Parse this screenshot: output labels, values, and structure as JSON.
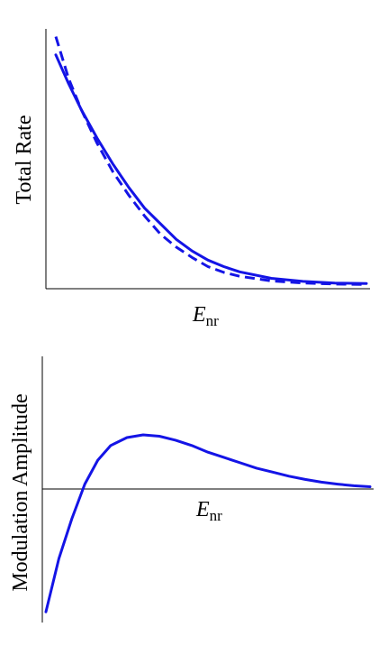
{
  "chart_data": [
    {
      "type": "line",
      "ylabel": "Total Rate",
      "xlabel_main": "E",
      "xlabel_sub": "nr",
      "xlim": [
        0,
        10
      ],
      "ylim": [
        0,
        1
      ],
      "grid": false,
      "ticks": false,
      "series": [
        {
          "style": "solid",
          "color": "#1414e6",
          "x": [
            0.2,
            0.6,
            1.0,
            1.5,
            2.0,
            2.5,
            3.0,
            3.5,
            4.0,
            4.5,
            5.0,
            5.5,
            6.0,
            7.0,
            8.0,
            9.0,
            10.0
          ],
          "y": [
            0.9,
            0.79,
            0.69,
            0.58,
            0.48,
            0.39,
            0.31,
            0.25,
            0.19,
            0.145,
            0.11,
            0.085,
            0.065,
            0.04,
            0.028,
            0.022,
            0.02
          ]
        },
        {
          "style": "dashed",
          "color": "#1414e6",
          "x": [
            0.2,
            0.6,
            1.0,
            1.5,
            2.0,
            2.5,
            3.0,
            3.5,
            4.0,
            4.5,
            5.0,
            5.5,
            6.0,
            7.0,
            8.0,
            9.0,
            10.0
          ],
          "y": [
            0.97,
            0.81,
            0.69,
            0.56,
            0.45,
            0.36,
            0.28,
            0.21,
            0.16,
            0.12,
            0.085,
            0.063,
            0.048,
            0.03,
            0.022,
            0.018,
            0.016
          ]
        }
      ]
    },
    {
      "type": "line",
      "ylabel": "Modulation Amplitude",
      "xlabel_main": "E",
      "xlabel_sub": "nr",
      "xlim": [
        0,
        10
      ],
      "ylim": [
        -1.0,
        1.0
      ],
      "grid": false,
      "ticks": false,
      "series": [
        {
          "style": "solid",
          "color": "#1414e6",
          "x": [
            0.0,
            0.4,
            0.8,
            1.2,
            1.6,
            2.0,
            2.5,
            3.0,
            3.5,
            4.0,
            4.5,
            5.0,
            5.5,
            6.0,
            6.5,
            7.0,
            7.5,
            8.0,
            8.5,
            9.0,
            9.5,
            10.0
          ],
          "y": [
            -0.92,
            -0.52,
            -0.22,
            0.04,
            0.22,
            0.33,
            0.39,
            0.41,
            0.4,
            0.37,
            0.33,
            0.28,
            0.24,
            0.2,
            0.16,
            0.13,
            0.1,
            0.075,
            0.055,
            0.04,
            0.028,
            0.02
          ]
        }
      ]
    }
  ]
}
